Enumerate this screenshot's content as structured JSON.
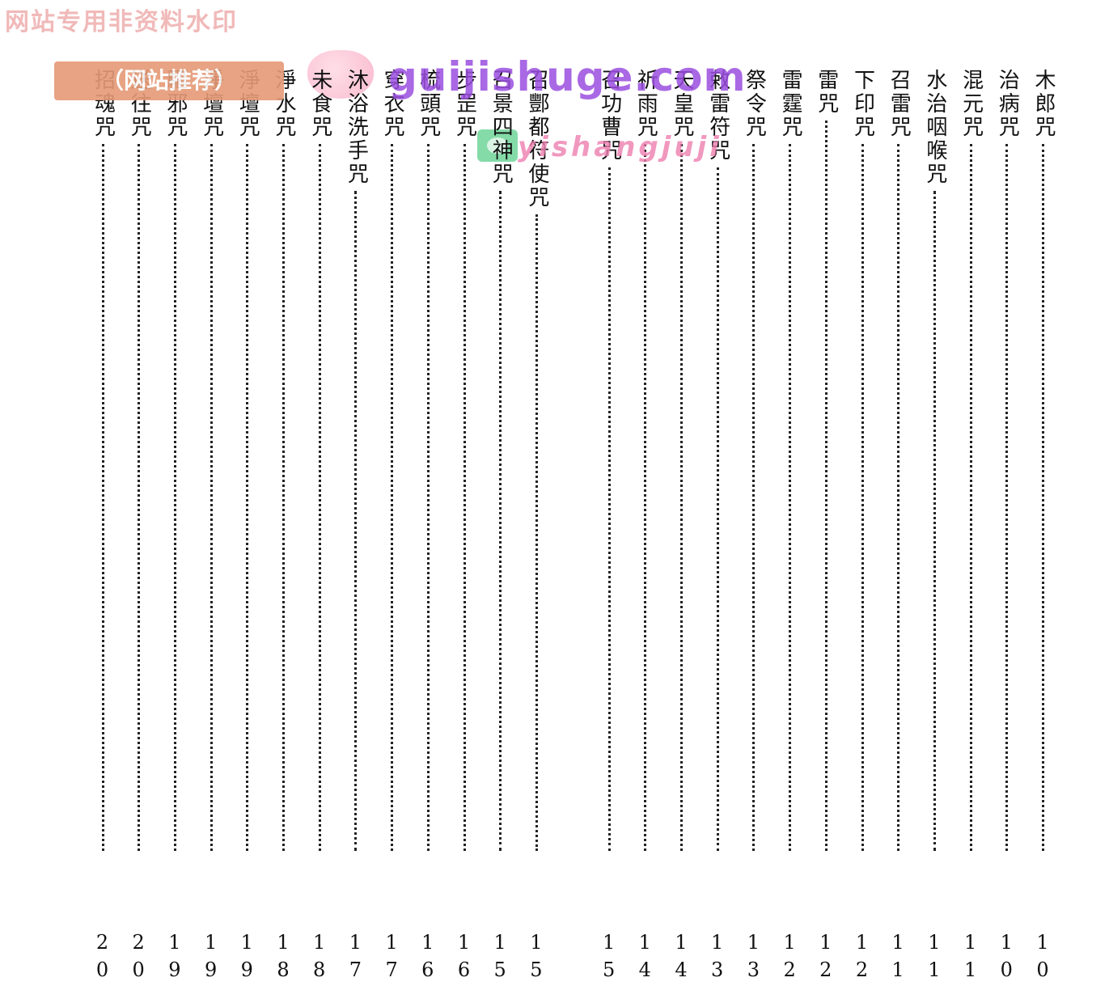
{
  "watermarks": {
    "top_banner": "网站专用非资料水印",
    "tag": "（网站推荐）",
    "site": "guijishuge.com",
    "sub": "yishangjuji"
  },
  "entries": [
    {
      "title": "木郎咒",
      "page": "10"
    },
    {
      "title": "治病咒",
      "page": "10"
    },
    {
      "title": "混元咒",
      "page": "11"
    },
    {
      "title": "水治咽喉咒",
      "page": "11"
    },
    {
      "title": "召雷咒",
      "page": "11"
    },
    {
      "title": "下印咒",
      "page": "12"
    },
    {
      "title": "雷咒",
      "page": "12"
    },
    {
      "title": "雷霆咒",
      "page": "12"
    },
    {
      "title": "祭令咒",
      "page": "13"
    },
    {
      "title": "敕雷符咒",
      "page": "13"
    },
    {
      "title": "天皇咒",
      "page": "14"
    },
    {
      "title": "祈雨咒",
      "page": "14"
    },
    {
      "title": "召功曹咒",
      "page": "15"
    },
    {
      "title": "召酆都符使咒",
      "page": "15"
    },
    {
      "title": "召景四神咒",
      "page": "15"
    },
    {
      "title": "步罡咒",
      "page": "16"
    },
    {
      "title": "梳頭咒",
      "page": "16"
    },
    {
      "title": "穿衣咒",
      "page": "17"
    },
    {
      "title": "沐浴洗手咒",
      "page": "17"
    },
    {
      "title": "未食咒",
      "page": "18"
    },
    {
      "title": "淨水咒",
      "page": "18"
    },
    {
      "title": "淨壇咒",
      "page": "19"
    },
    {
      "title": "淨壇咒",
      "page": "19"
    },
    {
      "title": "驅邪咒",
      "page": "19"
    },
    {
      "title": "送往咒",
      "page": "20"
    },
    {
      "title": "招魂咒",
      "page": "20"
    }
  ]
}
